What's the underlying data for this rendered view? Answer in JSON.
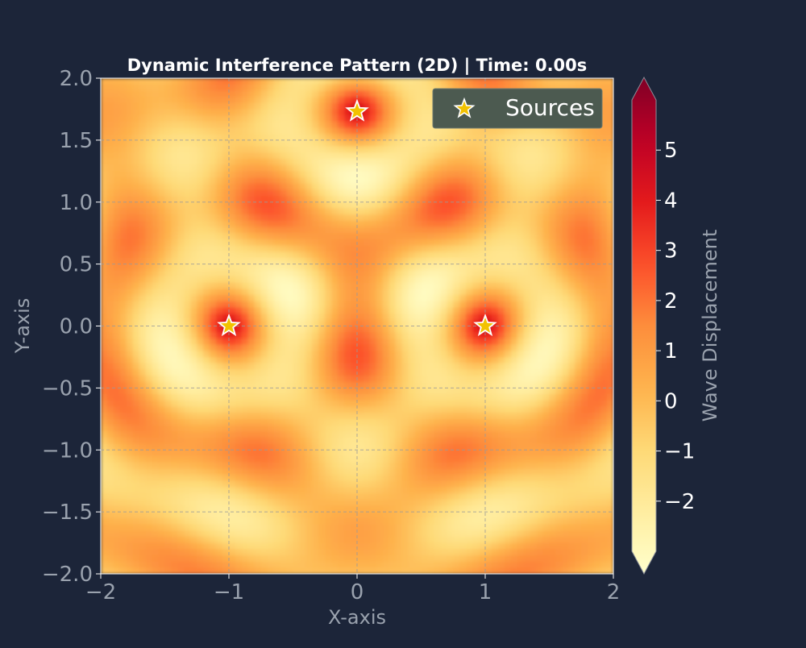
{
  "chart_data": {
    "type": "heatmap",
    "title": "Dynamic Interference Pattern (2D) | Time: 0.00s",
    "xlabel": "X-axis",
    "ylabel": "Y-axis",
    "xlim": [
      -2,
      2
    ],
    "ylim": [
      -2,
      2
    ],
    "x_ticks": [
      -2,
      -1,
      0,
      1,
      2
    ],
    "x_tick_labels": [
      "−2",
      "−1",
      "0",
      "1",
      "2"
    ],
    "y_ticks": [
      -2.0,
      -1.5,
      -1.0,
      -0.5,
      0.0,
      0.5,
      1.0,
      1.5,
      2.0
    ],
    "y_tick_labels": [
      "−2.0",
      "−1.5",
      "−1.0",
      "−0.5",
      "0.0",
      "0.5",
      "1.0",
      "1.5",
      "2.0"
    ],
    "grid": true,
    "colormap": "YlOrRd",
    "colorbar": {
      "label": "Wave Displacement",
      "range": [
        -3,
        6
      ],
      "ticks": [
        -2,
        -1,
        0,
        1,
        2,
        3,
        4,
        5
      ],
      "tick_labels": [
        "−2",
        "−1",
        "0",
        "1",
        "2",
        "3",
        "4",
        "5"
      ],
      "extend": "both"
    },
    "sources": {
      "legend_label": "Sources",
      "marker": "star",
      "color": "#f2c200",
      "points": [
        {
          "x": -1.0,
          "y": 0.0
        },
        {
          "x": 1.0,
          "y": 0.0
        },
        {
          "x": 0.0,
          "y": 1.732
        }
      ]
    },
    "legend_position": "top-right"
  }
}
